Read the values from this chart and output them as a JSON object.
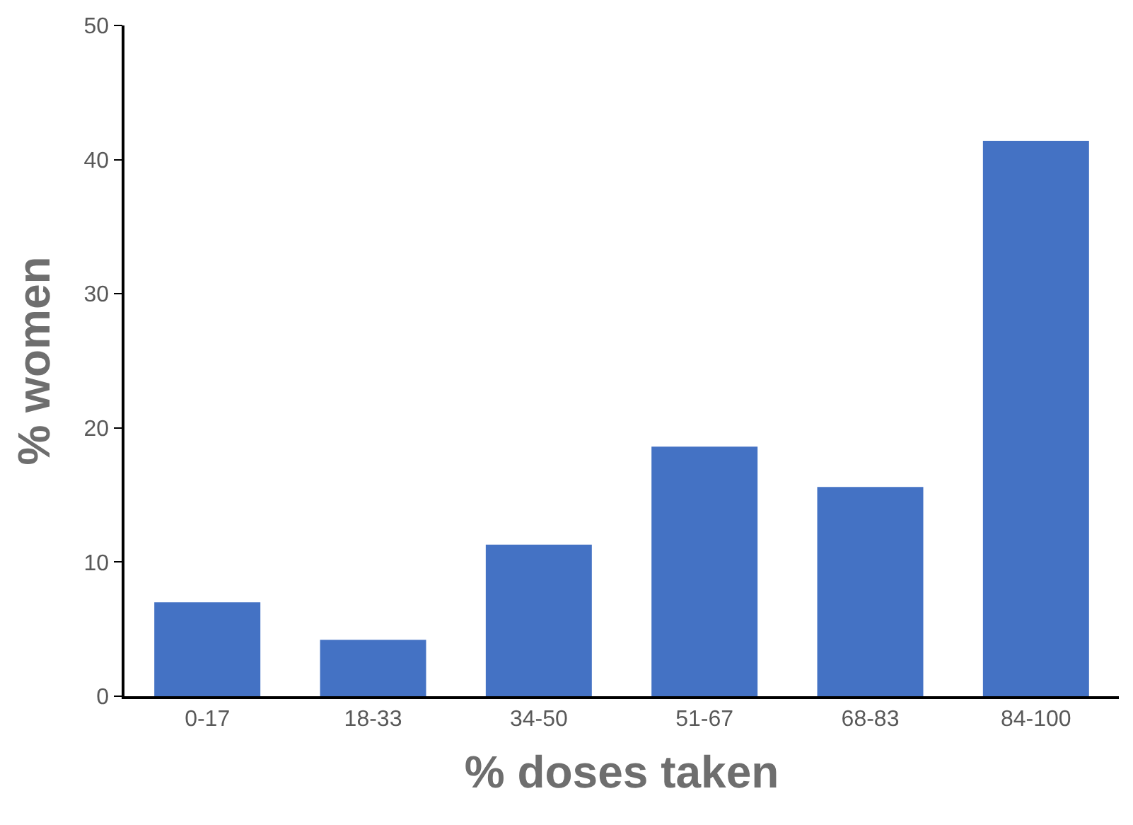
{
  "chart_data": {
    "type": "bar",
    "xlabel": "% doses taken",
    "ylabel": "% women",
    "categories": [
      "0-17",
      "18-33",
      "34-50",
      "51-67",
      "68-83",
      "84-100"
    ],
    "values": [
      7.0,
      4.2,
      11.3,
      18.6,
      15.6,
      41.4
    ],
    "color": "#4472c4",
    "ylim": [
      0,
      50
    ],
    "yticks": [
      0,
      10,
      20,
      30,
      40,
      50
    ]
  }
}
